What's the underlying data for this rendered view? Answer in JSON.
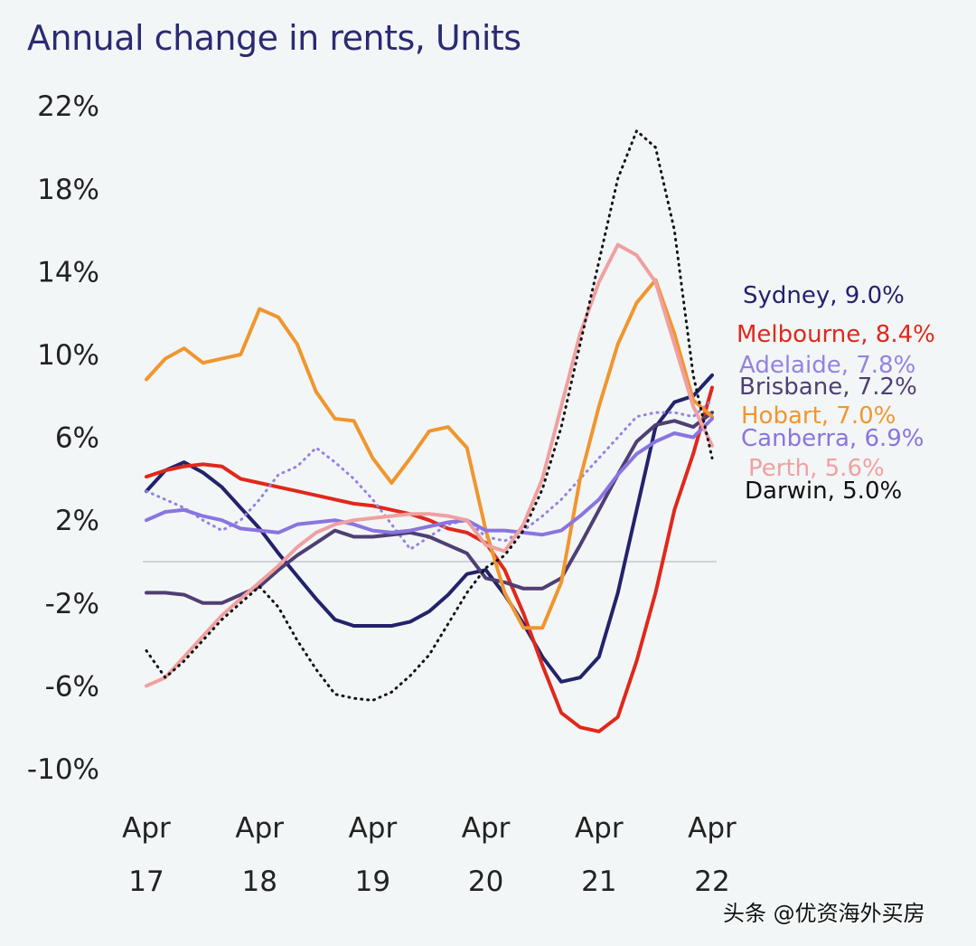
{
  "chart_data": {
    "type": "line",
    "title": "Annual change in rents, Units",
    "xlabel": "",
    "ylabel": "",
    "ylim": [
      -10,
      22
    ],
    "yticks": [
      "22%",
      "18%",
      "14%",
      "10%",
      "6%",
      "2%",
      "-2%",
      "-6%",
      "-10%"
    ],
    "ytick_values": [
      22,
      18,
      14,
      10,
      6,
      2,
      -2,
      -6,
      -10
    ],
    "xticks": [
      {
        "month": "Apr",
        "year": "17",
        "x": 0
      },
      {
        "month": "Apr",
        "year": "18",
        "x": 12
      },
      {
        "month": "Apr",
        "year": "19",
        "x": 24
      },
      {
        "month": "Apr",
        "year": "20",
        "x": 36
      },
      {
        "month": "Apr",
        "year": "21",
        "x": 48
      },
      {
        "month": "Apr",
        "year": "22",
        "x": 60
      }
    ],
    "x_unit": "months since Apr 2017",
    "x": [
      0,
      2,
      4,
      6,
      8,
      10,
      12,
      14,
      16,
      18,
      20,
      22,
      24,
      26,
      28,
      30,
      32,
      34,
      36,
      38,
      40,
      42,
      44,
      46,
      48,
      50,
      52,
      54,
      56,
      58,
      60
    ],
    "grid": false,
    "zero_line": true,
    "legend_placement": "right (end-of-line labels)",
    "series": [
      {
        "name": "Sydney",
        "label": "Sydney, 9.0%",
        "final": 9.0,
        "color": "#23226b",
        "dash": "solid",
        "values": [
          3.4,
          4.4,
          4.8,
          4.3,
          3.6,
          2.6,
          1.6,
          0.4,
          -0.7,
          -1.8,
          -2.8,
          -3.1,
          -3.1,
          -3.1,
          -2.9,
          -2.4,
          -1.6,
          -0.6,
          -0.4,
          -1.6,
          -3.0,
          -4.6,
          -5.8,
          -5.6,
          -4.6,
          -1.5,
          2.5,
          6.5,
          7.7,
          8.0,
          9.0
        ]
      },
      {
        "name": "Melbourne",
        "label": "Melbourne, 8.4%",
        "final": 8.4,
        "color": "#e0281b",
        "dash": "solid",
        "values": [
          4.1,
          4.4,
          4.6,
          4.7,
          4.6,
          4.0,
          3.8,
          3.6,
          3.4,
          3.2,
          3.0,
          2.8,
          2.7,
          2.5,
          2.3,
          2.0,
          1.6,
          1.4,
          0.9,
          -0.4,
          -2.5,
          -5.0,
          -7.3,
          -8.0,
          -8.2,
          -7.5,
          -4.8,
          -1.5,
          2.5,
          5.2,
          8.4
        ]
      },
      {
        "name": "Adelaide",
        "label": "Adelaide, 7.8%",
        "final": 7.8,
        "color": "#9383e0",
        "dash": "dotted",
        "values": [
          3.4,
          3.0,
          2.6,
          2.0,
          1.5,
          2.0,
          3.0,
          4.2,
          4.6,
          5.5,
          4.8,
          4.0,
          3.0,
          1.8,
          0.6,
          1.2,
          1.8,
          2.0,
          1.2,
          1.0,
          1.5,
          2.2,
          3.0,
          4.0,
          5.0,
          6.0,
          7.0,
          7.2,
          7.2,
          7.0,
          7.8
        ]
      },
      {
        "name": "Brisbane",
        "label": "Brisbane, 7.2%",
        "final": 7.2,
        "color": "#4f3f72",
        "dash": "solid",
        "values": [
          -1.5,
          -1.5,
          -1.6,
          -2.0,
          -2.0,
          -1.6,
          -1.2,
          -0.4,
          0.3,
          0.9,
          1.5,
          1.2,
          1.2,
          1.3,
          1.4,
          1.2,
          0.8,
          0.4,
          -0.8,
          -1.0,
          -1.3,
          -1.3,
          -0.8,
          0.8,
          2.5,
          4.2,
          5.8,
          6.6,
          6.8,
          6.5,
          7.2
        ]
      },
      {
        "name": "Hobart",
        "label": "Hobart, 7.0%",
        "final": 7.0,
        "color": "#f0962e",
        "dash": "solid",
        "values": [
          8.8,
          9.8,
          10.3,
          9.6,
          9.8,
          10.0,
          12.2,
          11.8,
          10.5,
          8.2,
          6.9,
          6.8,
          5.0,
          3.8,
          5.0,
          6.3,
          6.5,
          5.5,
          1.5,
          -1.5,
          -3.2,
          -3.2,
          -1.0,
          4.0,
          7.5,
          10.5,
          12.5,
          13.6,
          11.0,
          7.8,
          7.0
        ]
      },
      {
        "name": "Canberra",
        "label": "Canberra, 6.9%",
        "final": 6.9,
        "color": "#8a74e0",
        "dash": "solid",
        "values": [
          2.0,
          2.4,
          2.5,
          2.2,
          2.0,
          1.6,
          1.5,
          1.4,
          1.8,
          1.9,
          2.0,
          1.8,
          1.5,
          1.4,
          1.5,
          1.7,
          1.9,
          2.0,
          1.5,
          1.5,
          1.4,
          1.3,
          1.5,
          2.2,
          3.0,
          4.2,
          5.2,
          5.8,
          6.2,
          6.0,
          6.9
        ]
      },
      {
        "name": "Perth",
        "label": "Perth, 5.6%",
        "final": 5.6,
        "color": "#f0a0a0",
        "dash": "solid",
        "values": [
          -6.0,
          -5.6,
          -4.6,
          -3.6,
          -2.6,
          -1.8,
          -1.0,
          -0.2,
          0.7,
          1.4,
          1.8,
          2.0,
          2.1,
          2.2,
          2.3,
          2.3,
          2.2,
          2.0,
          0.8,
          0.5,
          1.8,
          4.0,
          7.5,
          11.0,
          13.5,
          15.3,
          14.8,
          13.5,
          10.5,
          7.5,
          5.6
        ]
      },
      {
        "name": "Darwin",
        "label": "Darwin, 5.0%",
        "final": 5.0,
        "color": "#111111",
        "dash": "dotted",
        "values": [
          -4.3,
          -5.6,
          -4.8,
          -3.8,
          -2.8,
          -2.0,
          -1.2,
          -2.2,
          -3.8,
          -5.2,
          -6.4,
          -6.6,
          -6.7,
          -6.3,
          -5.5,
          -4.5,
          -3.0,
          -1.5,
          -0.3,
          0.3,
          1.5,
          3.5,
          6.5,
          10.5,
          14.5,
          18.5,
          20.8,
          20.0,
          16.0,
          9.0,
          5.0
        ]
      }
    ]
  },
  "watermark": "头条 @优资海外买房"
}
